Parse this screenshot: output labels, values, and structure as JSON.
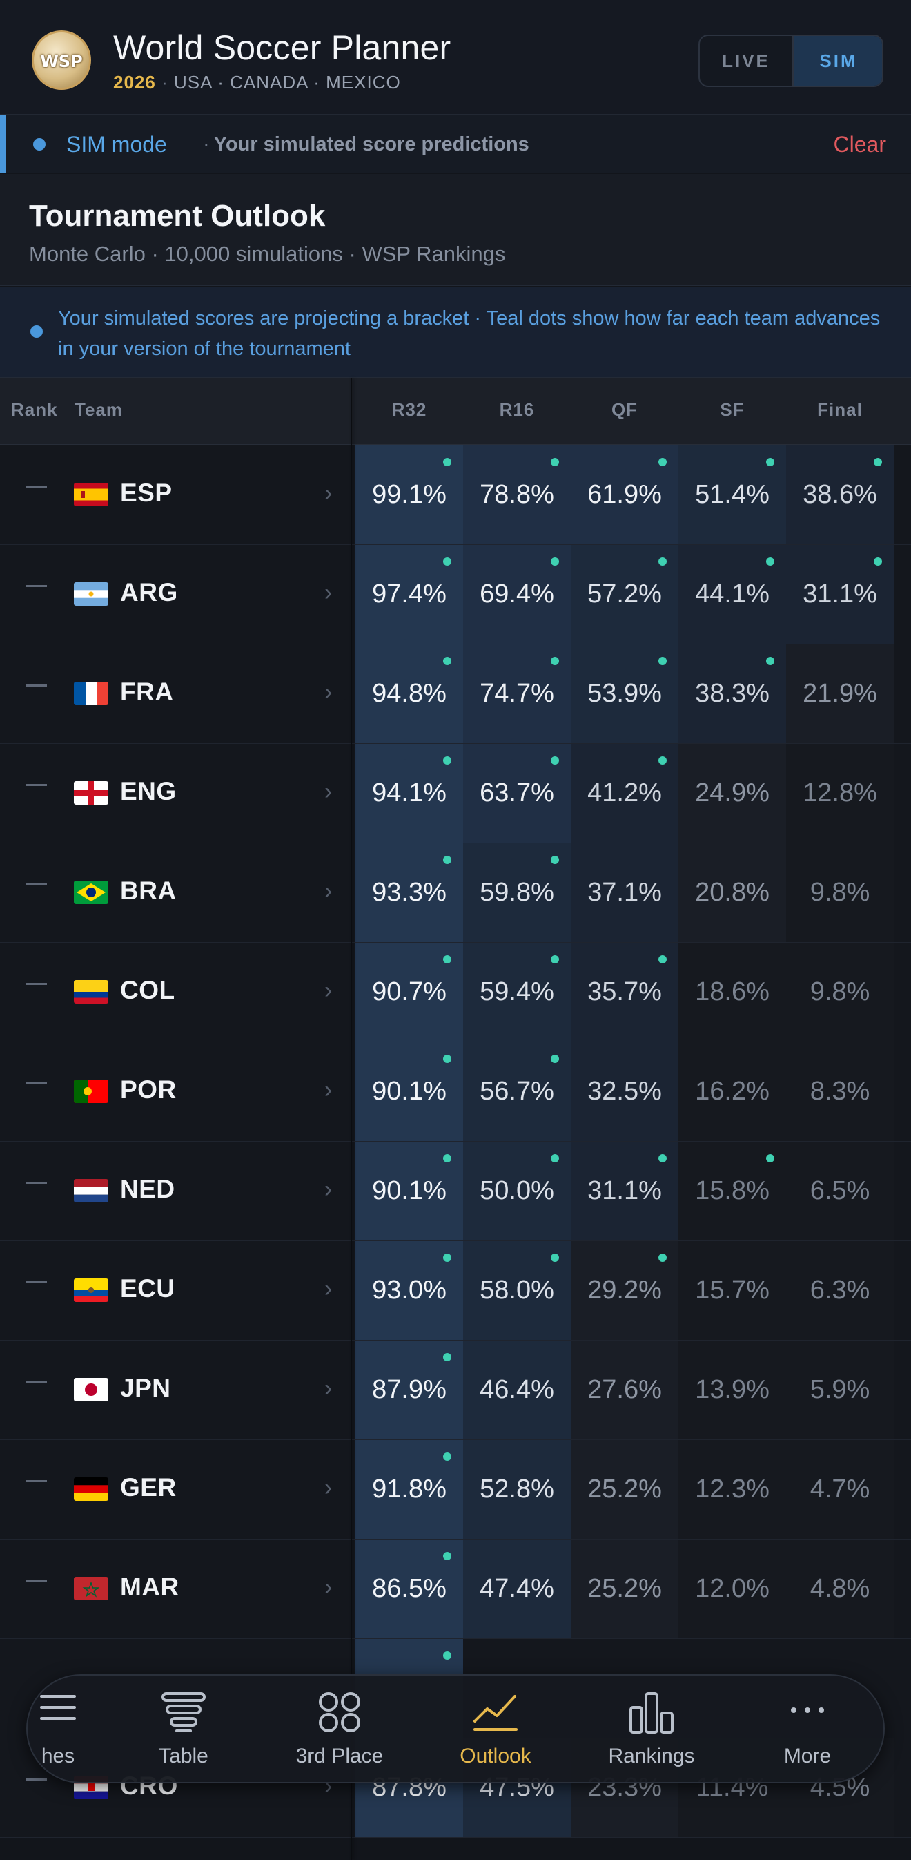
{
  "header": {
    "logo_text": "WSP",
    "title": "World Soccer Planner",
    "year": "2026",
    "hosts": "USA · CANADA · MEXICO",
    "mode_live": "LIVE",
    "mode_sim": "SIM"
  },
  "simbar": {
    "label": "SIM mode",
    "separator": "·",
    "description": "Your simulated score predictions",
    "clear": "Clear"
  },
  "outlook": {
    "title": "Tournament Outlook",
    "subtitle": "Monte Carlo · 10,000 simulations · WSP Rankings",
    "info": "Your simulated scores are projecting a bracket · Teal dots show how far each team advances in your version of the tournament"
  },
  "table": {
    "headers": {
      "rank": "Rank",
      "team": "Team",
      "r32": "R32",
      "r16": "R16",
      "qf": "QF",
      "sf": "SF",
      "final": "Final"
    },
    "rank_placeholder": "—",
    "rows": [
      {
        "team": "ESP",
        "flag": "spain",
        "r32": "99.1%",
        "r16": "78.8%",
        "qf": "61.9%",
        "sf": "51.4%",
        "final": "38.6%",
        "dots": [
          1,
          1,
          1,
          1,
          1
        ]
      },
      {
        "team": "ARG",
        "flag": "argentina",
        "r32": "97.4%",
        "r16": "69.4%",
        "qf": "57.2%",
        "sf": "44.1%",
        "final": "31.1%",
        "dots": [
          1,
          1,
          1,
          1,
          1
        ]
      },
      {
        "team": "FRA",
        "flag": "france",
        "r32": "94.8%",
        "r16": "74.7%",
        "qf": "53.9%",
        "sf": "38.3%",
        "final": "21.9%",
        "dots": [
          1,
          1,
          1,
          1,
          0
        ]
      },
      {
        "team": "ENG",
        "flag": "england",
        "r32": "94.1%",
        "r16": "63.7%",
        "qf": "41.2%",
        "sf": "24.9%",
        "final": "12.8%",
        "dots": [
          1,
          1,
          1,
          0,
          0
        ]
      },
      {
        "team": "BRA",
        "flag": "brazil",
        "r32": "93.3%",
        "r16": "59.8%",
        "qf": "37.1%",
        "sf": "20.8%",
        "final": "9.8%",
        "dots": [
          1,
          1,
          0,
          0,
          0
        ]
      },
      {
        "team": "COL",
        "flag": "colombia",
        "r32": "90.7%",
        "r16": "59.4%",
        "qf": "35.7%",
        "sf": "18.6%",
        "final": "9.8%",
        "dots": [
          1,
          1,
          1,
          0,
          0
        ]
      },
      {
        "team": "POR",
        "flag": "portugal",
        "r32": "90.1%",
        "r16": "56.7%",
        "qf": "32.5%",
        "sf": "16.2%",
        "final": "8.3%",
        "dots": [
          1,
          1,
          0,
          0,
          0
        ]
      },
      {
        "team": "NED",
        "flag": "netherlands",
        "r32": "90.1%",
        "r16": "50.0%",
        "qf": "31.1%",
        "sf": "15.8%",
        "final": "6.5%",
        "dots": [
          1,
          1,
          1,
          1,
          0
        ]
      },
      {
        "team": "ECU",
        "flag": "ecuador",
        "r32": "93.0%",
        "r16": "58.0%",
        "qf": "29.2%",
        "sf": "15.7%",
        "final": "6.3%",
        "dots": [
          1,
          1,
          1,
          0,
          0
        ]
      },
      {
        "team": "JPN",
        "flag": "japan",
        "r32": "87.9%",
        "r16": "46.4%",
        "qf": "27.6%",
        "sf": "13.9%",
        "final": "5.9%",
        "dots": [
          1,
          0,
          0,
          0,
          0
        ]
      },
      {
        "team": "GER",
        "flag": "germany",
        "r32": "91.8%",
        "r16": "52.8%",
        "qf": "25.2%",
        "sf": "12.3%",
        "final": "4.7%",
        "dots": [
          1,
          0,
          0,
          0,
          0
        ]
      },
      {
        "team": "MAR",
        "flag": "morocco",
        "r32": "86.5%",
        "r16": "47.4%",
        "qf": "25.2%",
        "sf": "12.0%",
        "final": "4.8%",
        "dots": [
          1,
          0,
          0,
          0,
          0
        ]
      },
      {
        "team": "",
        "flag": "",
        "r32": "",
        "r16": "",
        "qf": "",
        "sf": "",
        "final": "",
        "dots": [
          1,
          0,
          0,
          0,
          0
        ]
      },
      {
        "team": "CRO",
        "flag": "croatia",
        "r32": "87.8%",
        "r16": "47.5%",
        "qf": "23.3%",
        "sf": "11.4%",
        "final": "4.5%",
        "dots": [
          0,
          0,
          0,
          0,
          0
        ]
      }
    ]
  },
  "nav": {
    "items": [
      {
        "label": "hes",
        "icon": "matches-icon"
      },
      {
        "label": "Table",
        "icon": "table-icon"
      },
      {
        "label": "3rd Place",
        "icon": "third-place-icon"
      },
      {
        "label": "Outlook",
        "icon": "outlook-icon",
        "active": true
      },
      {
        "label": "Rankings",
        "icon": "rankings-icon"
      },
      {
        "label": "More",
        "icon": "more-icon"
      }
    ]
  },
  "colors": {
    "accent_blue": "#4a98dc",
    "accent_gold": "#e6b84c",
    "teal_dot": "#3fd1b2",
    "clear_red": "#e0595e"
  }
}
